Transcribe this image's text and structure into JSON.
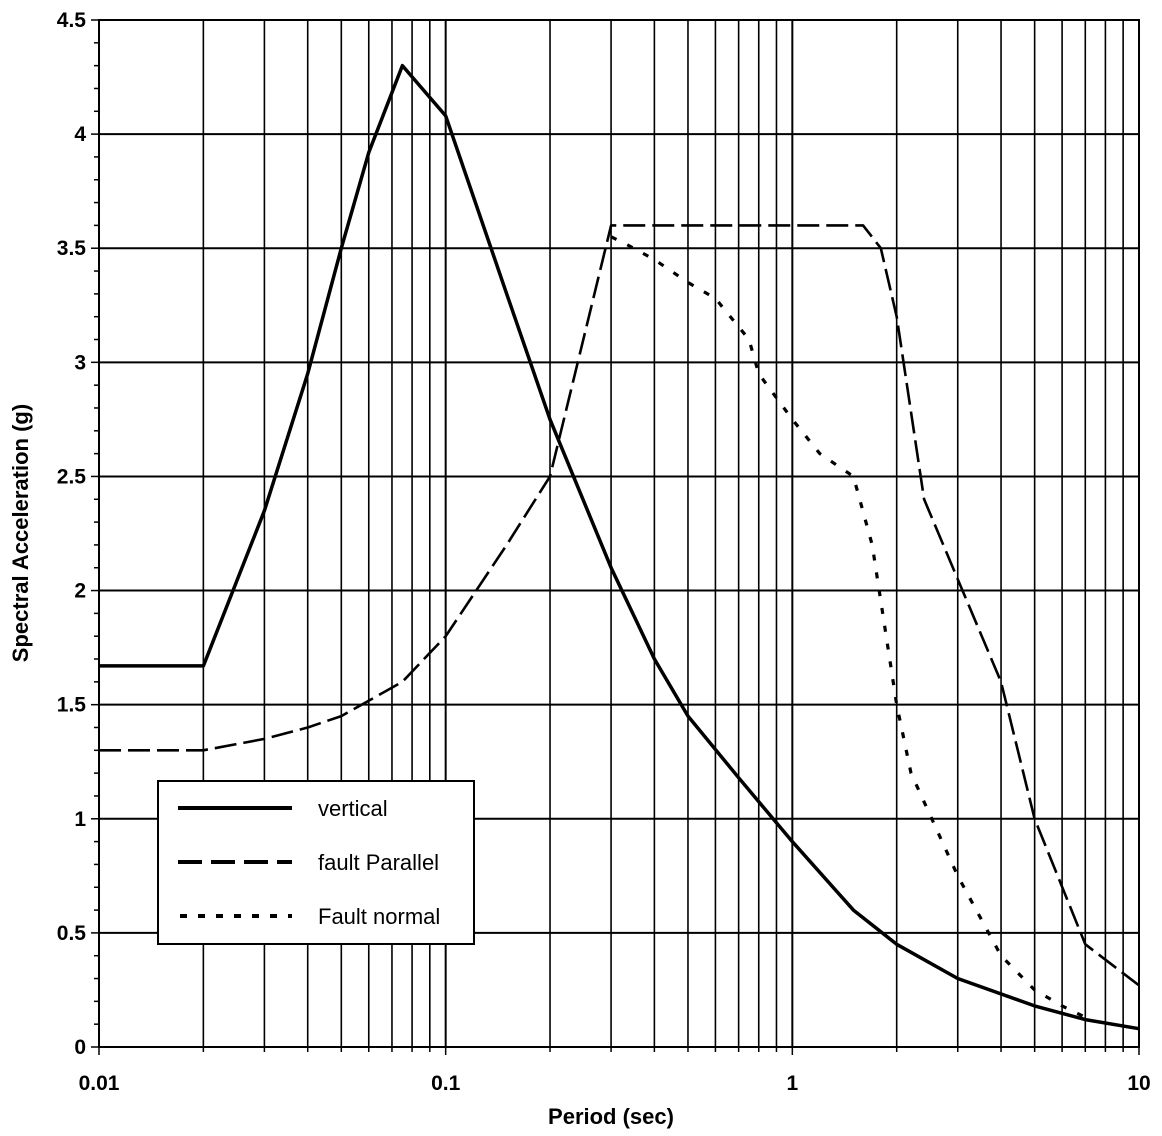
{
  "chart_data": {
    "type": "line",
    "xlabel": "Period (sec)",
    "ylabel": "Spectral Acceleration (g)",
    "x_scale": "log",
    "xlim": [
      0.01,
      10
    ],
    "ylim": [
      0,
      4.5
    ],
    "x_tick_labels": [
      "0.01",
      "0.1",
      "1",
      "10"
    ],
    "y_tick_labels": [
      "0",
      "0.5",
      "1",
      "1.5",
      "2",
      "2.5",
      "3",
      "3.5",
      "4",
      "4.5"
    ],
    "grid": true,
    "legend_position": "lower-left",
    "series": [
      {
        "name": "vertical",
        "style": "solid",
        "color": "#000000",
        "x": [
          0.01,
          0.02,
          0.03,
          0.04,
          0.05,
          0.06,
          0.075,
          0.1,
          0.15,
          0.2,
          0.3,
          0.4,
          0.5,
          0.7,
          1.0,
          1.5,
          2.0,
          3.0,
          5.0,
          7.0,
          10.0
        ],
        "y": [
          1.67,
          1.67,
          2.35,
          2.95,
          3.5,
          3.92,
          4.3,
          4.08,
          3.3,
          2.75,
          2.1,
          1.7,
          1.45,
          1.18,
          0.9,
          0.6,
          0.45,
          0.3,
          0.18,
          0.12,
          0.08
        ]
      },
      {
        "name": "fault Parallel",
        "style": "dashed",
        "color": "#000000",
        "x": [
          0.01,
          0.02,
          0.03,
          0.04,
          0.05,
          0.075,
          0.1,
          0.15,
          0.2,
          0.3,
          0.5,
          1.0,
          1.6,
          1.8,
          2.0,
          2.4,
          3.0,
          4.0,
          5.0,
          7.0,
          10.0
        ],
        "y": [
          1.3,
          1.3,
          1.35,
          1.4,
          1.45,
          1.6,
          1.8,
          2.2,
          2.5,
          3.6,
          3.6,
          3.6,
          3.6,
          3.5,
          3.2,
          2.4,
          2.05,
          1.6,
          1.0,
          0.45,
          0.27
        ]
      },
      {
        "name": "Fault normal",
        "style": "dotted",
        "color": "#000000",
        "x": [
          0.3,
          0.33,
          0.4,
          0.5,
          0.6,
          0.75,
          0.8,
          1.0,
          1.2,
          1.5,
          1.7,
          2.0,
          2.2,
          3.0,
          4.0,
          5.0,
          6.0,
          7.0
        ],
        "y": [
          3.55,
          3.52,
          3.45,
          3.35,
          3.28,
          3.1,
          2.95,
          2.75,
          2.6,
          2.5,
          2.2,
          1.5,
          1.2,
          0.75,
          0.4,
          0.25,
          0.18,
          0.13
        ]
      }
    ]
  }
}
